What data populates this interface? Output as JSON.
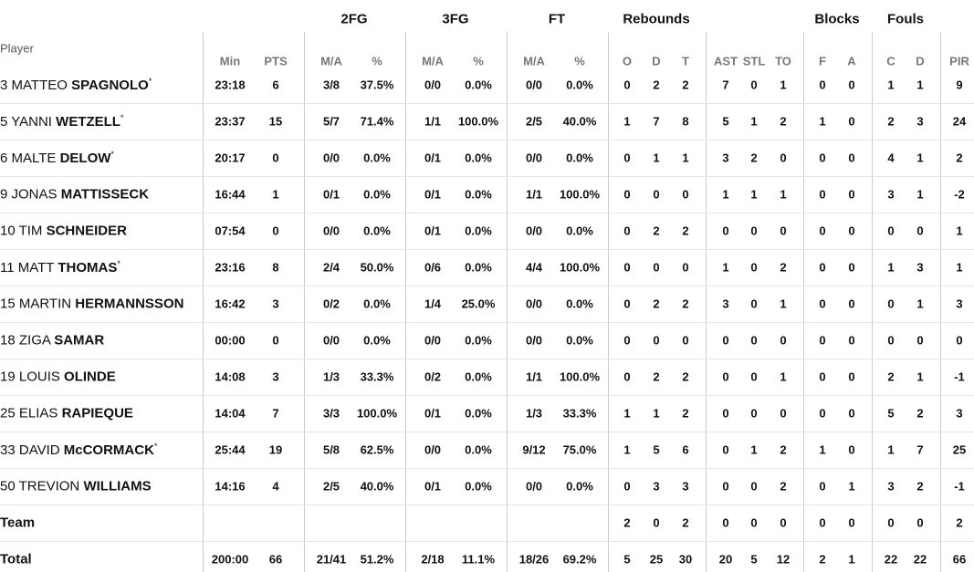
{
  "table": {
    "player_header": "Player",
    "groups": [
      "2FG",
      "3FG",
      "FT",
      "Rebounds",
      "Blocks",
      "Fouls"
    ],
    "columns": [
      "Min",
      "PTS",
      "M/A",
      "%",
      "M/A",
      "%",
      "M/A",
      "%",
      "O",
      "D",
      "T",
      "AST",
      "STL",
      "TO",
      "F",
      "A",
      "C",
      "D",
      "PIR"
    ],
    "rows": [
      {
        "number": "3",
        "first": "MATTEO",
        "last": "SPAGNOLO",
        "mark": "*",
        "cells": [
          "23:18",
          "6",
          "3/8",
          "37.5%",
          "0/0",
          "0.0%",
          "0/0",
          "0.0%",
          "0",
          "2",
          "2",
          "7",
          "0",
          "1",
          "0",
          "0",
          "1",
          "1",
          "9"
        ]
      },
      {
        "number": "5",
        "first": "YANNI",
        "last": "WETZELL",
        "mark": "*",
        "cells": [
          "23:37",
          "15",
          "5/7",
          "71.4%",
          "1/1",
          "100.0%",
          "2/5",
          "40.0%",
          "1",
          "7",
          "8",
          "5",
          "1",
          "2",
          "1",
          "0",
          "2",
          "3",
          "24"
        ]
      },
      {
        "number": "6",
        "first": "MALTE",
        "last": "DELOW",
        "mark": "*",
        "cells": [
          "20:17",
          "0",
          "0/0",
          "0.0%",
          "0/1",
          "0.0%",
          "0/0",
          "0.0%",
          "0",
          "1",
          "1",
          "3",
          "2",
          "0",
          "0",
          "0",
          "4",
          "1",
          "2"
        ]
      },
      {
        "number": "9",
        "first": "JONAS",
        "last": "MATTISSECK",
        "cells": [
          "16:44",
          "1",
          "0/1",
          "0.0%",
          "0/1",
          "0.0%",
          "1/1",
          "100.0%",
          "0",
          "0",
          "0",
          "1",
          "1",
          "1",
          "0",
          "0",
          "3",
          "1",
          "-2"
        ]
      },
      {
        "number": "10",
        "first": "TIM",
        "last": "SCHNEIDER",
        "cells": [
          "07:54",
          "0",
          "0/0",
          "0.0%",
          "0/1",
          "0.0%",
          "0/0",
          "0.0%",
          "0",
          "2",
          "2",
          "0",
          "0",
          "0",
          "0",
          "0",
          "0",
          "0",
          "1"
        ]
      },
      {
        "number": "11",
        "first": "MATT",
        "last": "THOMAS",
        "mark": "*",
        "cells": [
          "23:16",
          "8",
          "2/4",
          "50.0%",
          "0/6",
          "0.0%",
          "4/4",
          "100.0%",
          "0",
          "0",
          "0",
          "1",
          "0",
          "2",
          "0",
          "0",
          "1",
          "3",
          "1"
        ]
      },
      {
        "number": "15",
        "first": "MARTIN",
        "last": "HERMANNSSON",
        "cells": [
          "16:42",
          "3",
          "0/2",
          "0.0%",
          "1/4",
          "25.0%",
          "0/0",
          "0.0%",
          "0",
          "2",
          "2",
          "3",
          "0",
          "1",
          "0",
          "0",
          "0",
          "1",
          "3"
        ]
      },
      {
        "number": "18",
        "first": "ZIGA",
        "last": "SAMAR",
        "cells": [
          "00:00",
          "0",
          "0/0",
          "0.0%",
          "0/0",
          "0.0%",
          "0/0",
          "0.0%",
          "0",
          "0",
          "0",
          "0",
          "0",
          "0",
          "0",
          "0",
          "0",
          "0",
          "0"
        ]
      },
      {
        "number": "19",
        "first": "LOUIS",
        "last": "OLINDE",
        "cells": [
          "14:08",
          "3",
          "1/3",
          "33.3%",
          "0/2",
          "0.0%",
          "1/1",
          "100.0%",
          "0",
          "2",
          "2",
          "0",
          "0",
          "1",
          "0",
          "0",
          "2",
          "1",
          "-1"
        ]
      },
      {
        "number": "25",
        "first": "ELIAS",
        "last": "RAPIEQUE",
        "cells": [
          "14:04",
          "7",
          "3/3",
          "100.0%",
          "0/1",
          "0.0%",
          "1/3",
          "33.3%",
          "1",
          "1",
          "2",
          "0",
          "0",
          "0",
          "0",
          "0",
          "5",
          "2",
          "3"
        ]
      },
      {
        "number": "33",
        "first": "DAVID",
        "last": "McCORMACK",
        "mark": "*",
        "cells": [
          "25:44",
          "19",
          "5/8",
          "62.5%",
          "0/0",
          "0.0%",
          "9/12",
          "75.0%",
          "1",
          "5",
          "6",
          "0",
          "1",
          "2",
          "1",
          "0",
          "1",
          "7",
          "25"
        ]
      },
      {
        "number": "50",
        "first": "TREVION",
        "last": "WILLIAMS",
        "cells": [
          "14:16",
          "4",
          "2/5",
          "40.0%",
          "0/1",
          "0.0%",
          "0/0",
          "0.0%",
          "0",
          "3",
          "3",
          "0",
          "0",
          "2",
          "0",
          "1",
          "3",
          "2",
          "-1"
        ]
      },
      {
        "name": "Team",
        "cells": [
          null,
          null,
          null,
          null,
          null,
          null,
          null,
          null,
          "2",
          "0",
          "2",
          "0",
          "0",
          "0",
          "0",
          "0",
          "0",
          "0",
          "2"
        ]
      },
      {
        "name": "Total",
        "cells": [
          "200:00",
          "66",
          "21/41",
          "51.2%",
          "2/18",
          "11.1%",
          "18/26",
          "69.2%",
          "5",
          "25",
          "30",
          "20",
          "5",
          "12",
          "2",
          "1",
          "22",
          "22",
          "66"
        ]
      }
    ]
  }
}
